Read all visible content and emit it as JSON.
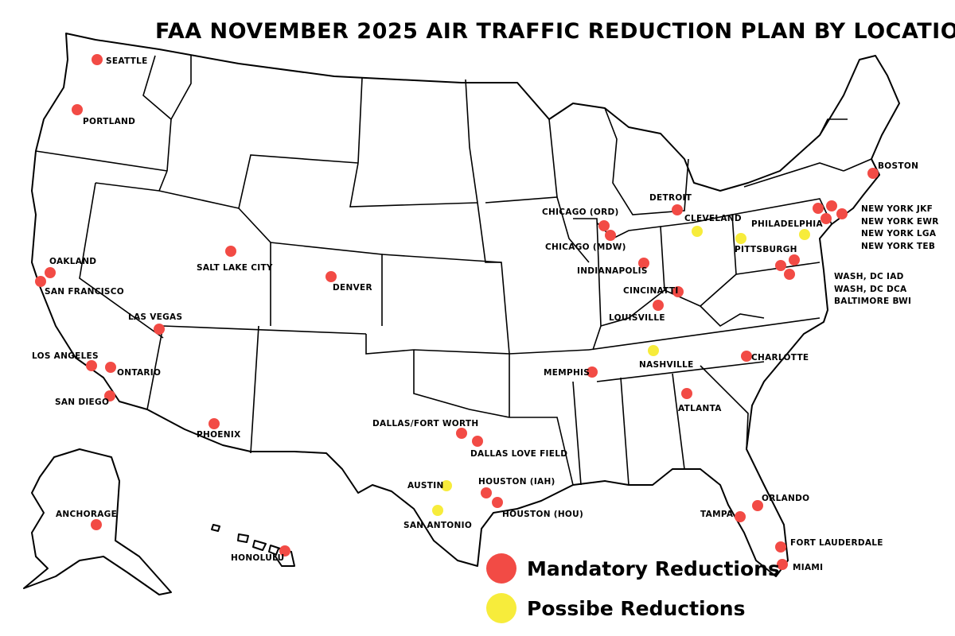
{
  "title": "FAA NOVEMBER 2025 AIR TRAFFIC REDUCTION PLAN BY LOCATION",
  "colors": {
    "mandatory": "#f24b45",
    "possible": "#f7ec3b",
    "outline": "#000000",
    "background": "#ffffff"
  },
  "legend": {
    "mandatory_label": "Mandatory Reductions",
    "possible_label": "Possibe Reductions"
  },
  "airports": [
    {
      "id": "seattle",
      "label": "SEATTLE",
      "type": "mandatory"
    },
    {
      "id": "portland",
      "label": "PORTLAND",
      "type": "mandatory"
    },
    {
      "id": "oakland",
      "label": "OAKLAND",
      "type": "mandatory"
    },
    {
      "id": "san-francisco",
      "label": "SAN FRANCISCO",
      "type": "mandatory"
    },
    {
      "id": "salt-lake-city",
      "label": "SALT LAKE CITY",
      "type": "mandatory"
    },
    {
      "id": "denver",
      "label": "DENVER",
      "type": "mandatory"
    },
    {
      "id": "las-vegas",
      "label": "LAS VEGAS",
      "type": "mandatory"
    },
    {
      "id": "los-angeles",
      "label": "LOS ANGELES",
      "type": "mandatory"
    },
    {
      "id": "ontario",
      "label": "ONTARIO",
      "type": "mandatory"
    },
    {
      "id": "san-diego",
      "label": "SAN DIEGO",
      "type": "mandatory"
    },
    {
      "id": "phoenix",
      "label": "PHOENIX",
      "type": "mandatory"
    },
    {
      "id": "anchorage",
      "label": "ANCHORAGE",
      "type": "mandatory"
    },
    {
      "id": "honolulu",
      "label": "HONOLULU",
      "type": "mandatory"
    },
    {
      "id": "chicago-ord",
      "label": "CHICAGO (ORD)",
      "type": "mandatory"
    },
    {
      "id": "chicago-mdw",
      "label": "CHICAGO (MDW)",
      "type": "mandatory"
    },
    {
      "id": "detroit",
      "label": "DETROIT",
      "type": "mandatory"
    },
    {
      "id": "cleveland",
      "label": "CLEVELAND",
      "type": "possible"
    },
    {
      "id": "indianapolis",
      "label": "INDIANAPOLIS",
      "type": "mandatory"
    },
    {
      "id": "cincinnati",
      "label": "CINCINATTI",
      "type": "mandatory"
    },
    {
      "id": "louisville",
      "label": "LOUISVILLE",
      "type": "mandatory"
    },
    {
      "id": "philadelphia",
      "label": "PHILADELPHIA",
      "type": "possible"
    },
    {
      "id": "pittsburgh",
      "label": "PITTSBURGH",
      "type": "possible"
    },
    {
      "id": "boston",
      "label": "BOSTON",
      "type": "mandatory"
    },
    {
      "id": "new-york-jfk",
      "label": "NEW YORK JKF",
      "type": "mandatory"
    },
    {
      "id": "new-york-ewr",
      "label": "NEW YORK EWR",
      "type": "mandatory"
    },
    {
      "id": "new-york-lga",
      "label": "NEW YORK LGA",
      "type": "mandatory"
    },
    {
      "id": "new-york-teb",
      "label": "NEW YORK TEB",
      "type": "mandatory"
    },
    {
      "id": "wash-dc-iad",
      "label": "WASH, DC IAD",
      "type": "mandatory"
    },
    {
      "id": "wash-dc-dca",
      "label": "WASH, DC DCA",
      "type": "mandatory"
    },
    {
      "id": "baltimore-bwi",
      "label": "BALTIMORE BWI",
      "type": "mandatory"
    },
    {
      "id": "memphis",
      "label": "MEMPHIS",
      "type": "mandatory"
    },
    {
      "id": "nashville",
      "label": "NASHVILLE",
      "type": "possible"
    },
    {
      "id": "charlotte",
      "label": "CHARLOTTE",
      "type": "mandatory"
    },
    {
      "id": "atlanta",
      "label": "ATLANTA",
      "type": "mandatory"
    },
    {
      "id": "dallas-fort-worth",
      "label": "DALLAS/FORT WORTH",
      "type": "mandatory"
    },
    {
      "id": "dallas-love-field",
      "label": "DALLAS LOVE FIELD",
      "type": "mandatory"
    },
    {
      "id": "austin",
      "label": "AUSTIN",
      "type": "possible"
    },
    {
      "id": "san-antonio",
      "label": "SAN ANTONIO",
      "type": "possible"
    },
    {
      "id": "houston-iah",
      "label": "HOUSTON (IAH)",
      "type": "mandatory"
    },
    {
      "id": "houston-hou",
      "label": "HOUSTON (HOU)",
      "type": "mandatory"
    },
    {
      "id": "orlando",
      "label": "ORLANDO",
      "type": "mandatory"
    },
    {
      "id": "tampa",
      "label": "TAMPA",
      "type": "mandatory"
    },
    {
      "id": "fort-lauderdale",
      "label": "FORT LAUDERDALE",
      "type": "mandatory"
    },
    {
      "id": "miami",
      "label": "MIAMI",
      "type": "mandatory"
    }
  ]
}
